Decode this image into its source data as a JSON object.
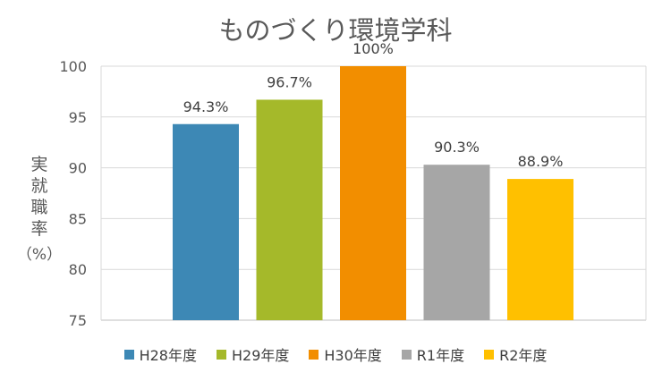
{
  "chart_data": {
    "type": "bar",
    "title": "ものづくり環境学科",
    "ylabel": "実就職率（%）",
    "ylabel_lines": [
      "実",
      "就",
      "職",
      "率",
      "（%）"
    ],
    "ylim": [
      75,
      100
    ],
    "yticks": [
      75,
      80,
      85,
      90,
      95,
      100
    ],
    "grid": true,
    "legend_position": "bottom",
    "categories": [
      "H28年度",
      "H29年度",
      "H30年度",
      "R1年度",
      "R2年度"
    ],
    "values": [
      94.3,
      96.7,
      100,
      90.3,
      88.9
    ],
    "data_labels": [
      "94.3%",
      "96.7%",
      "100%",
      "90.3%",
      "88.9%"
    ],
    "colors": [
      "#3D88B5",
      "#A5B92A",
      "#F28E00",
      "#A6A6A6",
      "#FFC000"
    ]
  }
}
